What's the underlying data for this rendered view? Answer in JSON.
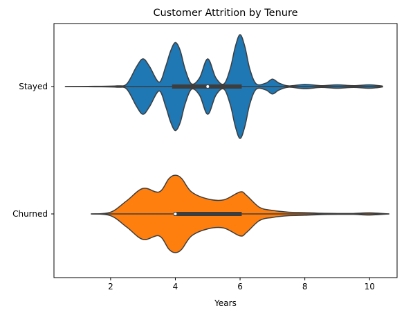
{
  "chart_data": {
    "type": "violin",
    "title": "Customer Attrition by Tenure",
    "xlabel": "Years",
    "ylabel": "",
    "xlim": [
      0.25,
      10.85
    ],
    "xticks": [
      2,
      4,
      6,
      8,
      10
    ],
    "orientation": "horizontal",
    "grid": false,
    "legend": "none",
    "categories": [
      "Stayed",
      "Churned"
    ],
    "series": [
      {
        "name": "Stayed",
        "color": "#1f77b4",
        "range": [
          0.6,
          10.4
        ],
        "quartiles": [
          3.9,
          5.0,
          6.05
        ],
        "whiskers": [
          0.6,
          10.4
        ],
        "density": [
          [
            0.6,
            0.0
          ],
          [
            1.5,
            0.005
          ],
          [
            2.2,
            0.015
          ],
          [
            2.5,
            0.06
          ],
          [
            2.8,
            0.45
          ],
          [
            3.0,
            0.63
          ],
          [
            3.2,
            0.46
          ],
          [
            3.5,
            0.1
          ],
          [
            3.7,
            0.45
          ],
          [
            3.85,
            0.8
          ],
          [
            4.0,
            1.0
          ],
          [
            4.15,
            0.82
          ],
          [
            4.3,
            0.4
          ],
          [
            4.5,
            0.06
          ],
          [
            4.75,
            0.2
          ],
          [
            5.0,
            0.63
          ],
          [
            5.25,
            0.2
          ],
          [
            5.5,
            0.06
          ],
          [
            5.7,
            0.42
          ],
          [
            5.85,
            0.9
          ],
          [
            6.0,
            1.18
          ],
          [
            6.15,
            0.9
          ],
          [
            6.3,
            0.4
          ],
          [
            6.5,
            0.06
          ],
          [
            6.8,
            0.08
          ],
          [
            7.0,
            0.17
          ],
          [
            7.2,
            0.08
          ],
          [
            7.5,
            0.015
          ],
          [
            8.0,
            0.05
          ],
          [
            8.5,
            0.02
          ],
          [
            9.0,
            0.04
          ],
          [
            9.5,
            0.02
          ],
          [
            10.0,
            0.04
          ],
          [
            10.4,
            0.01
          ]
        ]
      },
      {
        "name": "Churned",
        "color": "#ff7f0e",
        "range": [
          1.4,
          10.6
        ],
        "quartiles": [
          3.95,
          4.0,
          6.05
        ],
        "whiskers": [
          1.4,
          10.6
        ],
        "density": [
          [
            1.4,
            0.0
          ],
          [
            2.0,
            0.04
          ],
          [
            2.5,
            0.3
          ],
          [
            3.0,
            0.58
          ],
          [
            3.5,
            0.5
          ],
          [
            3.8,
            0.8
          ],
          [
            4.0,
            0.88
          ],
          [
            4.2,
            0.8
          ],
          [
            4.5,
            0.5
          ],
          [
            5.0,
            0.34
          ],
          [
            5.5,
            0.32
          ],
          [
            6.0,
            0.5
          ],
          [
            6.2,
            0.42
          ],
          [
            6.6,
            0.15
          ],
          [
            7.0,
            0.08
          ],
          [
            7.5,
            0.04
          ],
          [
            8.0,
            0.03
          ],
          [
            8.5,
            0.015
          ],
          [
            9.0,
            0.01
          ],
          [
            9.5,
            0.01
          ],
          [
            10.0,
            0.025
          ],
          [
            10.6,
            0.0
          ]
        ]
      }
    ]
  }
}
